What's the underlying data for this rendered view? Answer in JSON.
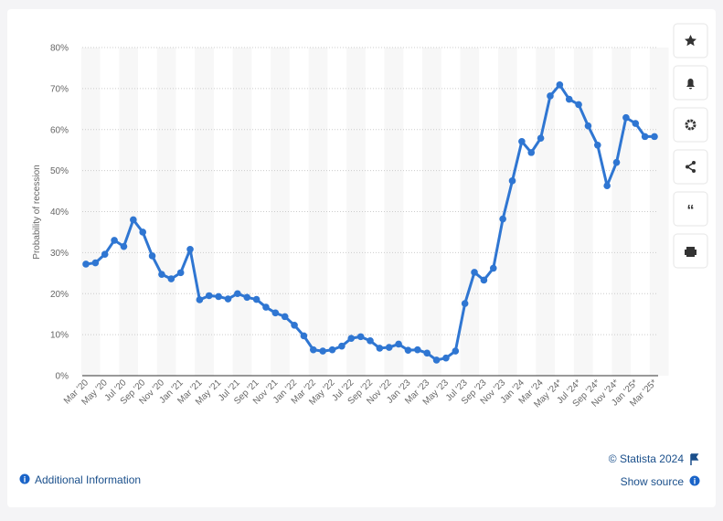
{
  "chart_data": {
    "type": "line",
    "y_label": "Probability of recession",
    "categories": [
      "Mar '20",
      null,
      "May '20",
      null,
      "Jul '20",
      null,
      "Sep '20",
      null,
      "Nov '20",
      null,
      "Jan '21",
      null,
      "Mar '21",
      null,
      "May '21",
      null,
      "Jul '21",
      null,
      "Sep '21",
      null,
      "Nov '21",
      null,
      "Jan '22",
      null,
      "Mar '22",
      null,
      "May '22",
      null,
      "Jul '22",
      null,
      "Sep '22",
      null,
      "Nov '22",
      null,
      "Jan '23",
      null,
      "Mar '23",
      null,
      "May '23",
      null,
      "Jul '23",
      null,
      "Sep '23",
      null,
      "Nov '23",
      null,
      "Jan '24",
      null,
      "Mar '24",
      null,
      "May '24*",
      null,
      "Jul '24*",
      null,
      "Sep '24*",
      null,
      "Nov '24*",
      null,
      "Jan '25*",
      null,
      "Mar '25*"
    ],
    "series": [
      {
        "name": "Probability of recession",
        "color": "#2f76d2",
        "values": [
          27.2,
          27.5,
          29.6,
          33,
          31.5,
          38,
          35,
          29.2,
          24.7,
          23.6,
          25.1,
          30.8,
          18.5,
          19.5,
          19.3,
          18.7,
          20,
          19.1,
          18.6,
          16.7,
          15.3,
          14.4,
          12.3,
          9.7,
          6.3,
          6,
          6.3,
          7.2,
          9.1,
          9.5,
          8.5,
          6.7,
          6.9,
          7.7,
          6.2,
          6.3,
          5.5,
          3.8,
          4.3,
          6,
          17.6,
          25.2,
          23.3,
          26.2,
          38.2,
          47.5,
          57.1,
          54.4,
          57.9,
          68.2,
          70.9,
          67.4,
          66.1,
          60.9,
          56.2,
          46.3,
          52,
          62.9,
          61.5,
          58.3,
          58.3
        ]
      }
    ],
    "ylim": [
      0,
      80
    ],
    "yticks": [
      {
        "value": 0,
        "label": "0%"
      },
      {
        "value": 10,
        "label": "10%"
      },
      {
        "value": 20,
        "label": "20%"
      },
      {
        "value": 30,
        "label": "30%"
      },
      {
        "value": 40,
        "label": "40%"
      },
      {
        "value": 50,
        "label": "50%"
      },
      {
        "value": 60,
        "label": "60%"
      },
      {
        "value": 70,
        "label": "70%"
      },
      {
        "value": 80,
        "label": "80%"
      }
    ],
    "grid": true
  },
  "footer": {
    "copyright": "© Statista 2024",
    "additional_info": "Additional Information",
    "show_source": "Show source"
  }
}
